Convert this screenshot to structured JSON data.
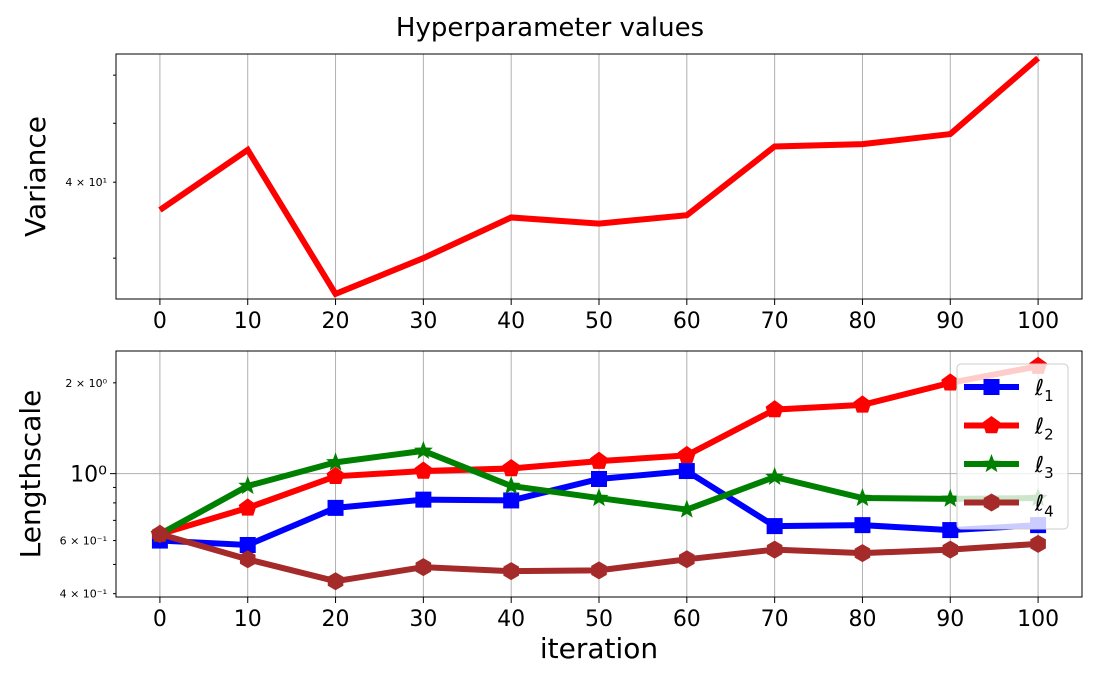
{
  "chart_data": {
    "title": "Hyperparameter values",
    "panels": [
      {
        "type": "line",
        "yscale": "log",
        "ylabel": "Variance",
        "xlabel": "",
        "ylim": [
          25.7,
          65.0
        ],
        "xlim": [
          -5,
          105
        ],
        "grid": "x",
        "ytick_labels": [
          {
            "value": 40,
            "text": "4 × 10¹"
          }
        ],
        "x": [
          0,
          10,
          20,
          30,
          40,
          50,
          60,
          70,
          80,
          90,
          100
        ],
        "series": [
          {
            "name": "",
            "color": "#ff0000",
            "marker": "none",
            "values": [
              36.0,
              45.2,
              26.2,
              30.0,
              35.0,
              34.2,
              35.3,
              45.8,
              46.2,
              48.0,
              64.0
            ]
          }
        ]
      },
      {
        "type": "line",
        "yscale": "log",
        "ylabel": "Lengthscale",
        "xlabel": "iteration",
        "ylim": [
          0.39,
          2.55
        ],
        "xlim": [
          -5,
          105
        ],
        "grid": "both",
        "legend": "right",
        "ytick_labels": [
          {
            "value": 2.0,
            "text": "2 × 10⁰",
            "size": "small"
          },
          {
            "value": 1.0,
            "text": "10⁰",
            "size": "mid"
          },
          {
            "value": 0.6,
            "text": "6 × 10⁻¹",
            "size": "small"
          },
          {
            "value": 0.4,
            "text": "4 × 10⁻¹",
            "size": "small"
          }
        ],
        "x": [
          0,
          10,
          20,
          30,
          40,
          50,
          60,
          70,
          80,
          90,
          100
        ],
        "series": [
          {
            "name": "ℓ",
            "subscript": "1",
            "color": "#0000ff",
            "marker": "square",
            "values": [
              0.6,
              0.58,
              0.77,
              0.82,
              0.815,
              0.96,
              1.02,
              0.67,
              0.675,
              0.65,
              0.675
            ]
          },
          {
            "name": "ℓ",
            "subscript": "2",
            "color": "#ff0000",
            "marker": "pentagon",
            "values": [
              0.63,
              0.77,
              0.98,
              1.02,
              1.04,
              1.1,
              1.15,
              1.63,
              1.69,
              2.0,
              2.27
            ]
          },
          {
            "name": "ℓ",
            "subscript": "3",
            "color": "#008000",
            "marker": "star",
            "values": [
              0.63,
              0.91,
              1.09,
              1.19,
              0.91,
              0.83,
              0.76,
              0.975,
              0.83,
              0.825,
              0.83
            ]
          },
          {
            "name": "ℓ",
            "subscript": "4",
            "color": "#a52a2a",
            "marker": "hexagon",
            "values": [
              0.63,
              0.52,
              0.44,
              0.49,
              0.475,
              0.478,
              0.52,
              0.56,
              0.545,
              0.56,
              0.585
            ]
          }
        ]
      }
    ]
  }
}
